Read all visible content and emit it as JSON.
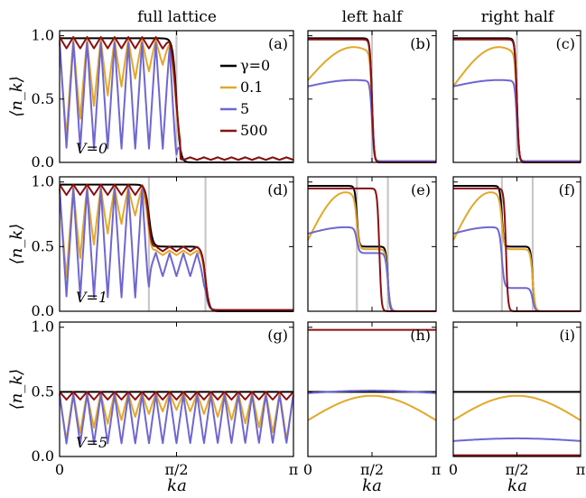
{
  "columns": [
    "full lattice",
    "left half",
    "right half"
  ],
  "y_axis_label": "⟨n_k⟩",
  "x_axis_label": "ka",
  "x_ticks": [
    "0",
    "π/2",
    "π"
  ],
  "y_ticks": [
    "0.0",
    "0.5",
    "1.0"
  ],
  "legend": {
    "prefix": "γ = ",
    "entries": [
      {
        "label": "γ=0",
        "color": "#000000"
      },
      {
        "label": "0.1",
        "color": "#e2a829"
      },
      {
        "label": "5",
        "color": "#6f67d1"
      },
      {
        "label": "500",
        "color": "#8b0f12"
      }
    ]
  },
  "rows": [
    {
      "v_label": "V=0",
      "panels": [
        "(a)",
        "(b)",
        "(c)"
      ]
    },
    {
      "v_label": "V=1",
      "panels": [
        "(d)",
        "(e)",
        "(f)"
      ]
    },
    {
      "v_label": "V=5",
      "panels": [
        "(g)",
        "(h)",
        "(i)"
      ]
    }
  ],
  "chart_data": {
    "type": "line",
    "x_range": [
      0,
      3.1416
    ],
    "ylim": [
      0,
      1
    ],
    "x_unit": "ka",
    "series_colors": {
      "0": "#000000",
      "0.1": "#e2a829",
      "5": "#6f67d1",
      "500": "#8b0f12"
    },
    "panels": [
      {
        "id": "(a)",
        "column": "full lattice",
        "v": 0,
        "vlines": [
          1.57
        ],
        "series": [
          {
            "name": "γ=0",
            "shape": "step",
            "params": {
              "hi": 0.98,
              "lo": 0.0,
              "edge": 1.57
            }
          },
          {
            "name": "0.1",
            "shape": "oscillating-step",
            "params": {
              "peak": 0.97,
              "trough_start": 0.0,
              "trough_mid": 0.82,
              "edge": 1.57,
              "tail": 0.02
            }
          },
          {
            "name": "5",
            "shape": "oscillating-step",
            "params": {
              "peak": 0.95,
              "trough_start": 0.12,
              "trough_mid": 0.1,
              "edge": 1.57,
              "tail": 0.02
            }
          },
          {
            "name": "500",
            "shape": "oscillating-step",
            "params": {
              "peak": 0.99,
              "trough_start": 0.9,
              "trough_mid": 0.9,
              "edge": 1.57,
              "tail": 0.02
            }
          }
        ]
      },
      {
        "id": "(b)",
        "column": "left half",
        "v": 0,
        "vlines": [
          1.57
        ],
        "series": [
          {
            "name": "γ=0",
            "shape": "step",
            "params": {
              "hi": 0.98,
              "lo": 0.0,
              "edge": 1.57
            }
          },
          {
            "name": "0.1",
            "shape": "dome-step",
            "params": {
              "start": 0.65,
              "top": 0.91,
              "edge": 1.57,
              "tail": 0.01
            }
          },
          {
            "name": "5",
            "shape": "dome-step",
            "params": {
              "start": 0.6,
              "top": 0.65,
              "edge": 1.57,
              "tail": 0.01
            }
          },
          {
            "name": "500",
            "shape": "step",
            "params": {
              "hi": 0.97,
              "lo": 0.0,
              "edge": 1.57
            }
          }
        ]
      },
      {
        "id": "(c)",
        "column": "right half",
        "v": 0,
        "vlines": [
          1.57
        ],
        "series": [
          {
            "name": "γ=0",
            "shape": "step",
            "params": {
              "hi": 0.98,
              "lo": 0.0,
              "edge": 1.57
            }
          },
          {
            "name": "0.1",
            "shape": "dome-step",
            "params": {
              "start": 0.6,
              "top": 0.91,
              "edge": 1.57,
              "tail": 0.01
            }
          },
          {
            "name": "5",
            "shape": "dome-step",
            "params": {
              "start": 0.6,
              "top": 0.65,
              "edge": 1.57,
              "tail": 0.01
            }
          },
          {
            "name": "500",
            "shape": "step",
            "params": {
              "hi": 0.97,
              "lo": 0.0,
              "edge": 1.57
            }
          }
        ]
      },
      {
        "id": "(d)",
        "column": "full lattice",
        "v": 1,
        "vlines": [
          1.2,
          1.96
        ],
        "series": [
          {
            "name": "γ=0",
            "shape": "two-step",
            "params": {
              "hi": 0.98,
              "mid": 0.5,
              "lo": 0.0,
              "e1": 1.2,
              "e2": 1.96
            }
          },
          {
            "name": "0.1",
            "shape": "oscillating-two-step",
            "params": {
              "peak": 0.96,
              "trough_start": 0.05,
              "trough_mid": 0.8,
              "mid": 0.47,
              "e1": 1.2,
              "e2": 1.96
            }
          },
          {
            "name": "5",
            "shape": "oscillating-two-step",
            "params": {
              "peak": 0.95,
              "trough_start": 0.12,
              "trough_mid": 0.1,
              "mid": 0.45,
              "e1": 1.2,
              "e2": 1.96
            }
          },
          {
            "name": "500",
            "shape": "oscillating-two-step",
            "params": {
              "peak": 0.98,
              "trough_start": 0.9,
              "trough_mid": 0.9,
              "mid": 0.5,
              "e1": 1.2,
              "e2": 1.96
            }
          }
        ]
      },
      {
        "id": "(e)",
        "column": "left half",
        "v": 1,
        "vlines": [
          1.2,
          1.96
        ],
        "series": [
          {
            "name": "γ=0",
            "shape": "two-step",
            "params": {
              "hi": 0.97,
              "mid": 0.5,
              "lo": 0.0,
              "e1": 1.2,
              "e2": 1.96
            }
          },
          {
            "name": "0.1",
            "shape": "dome-two-step",
            "params": {
              "start": 0.55,
              "top": 0.92,
              "mid": 0.48,
              "e1": 1.2,
              "e2": 1.96
            }
          },
          {
            "name": "5",
            "shape": "dome-two-step",
            "params": {
              "start": 0.6,
              "top": 0.65,
              "mid": 0.45,
              "e1": 1.2,
              "e2": 1.96
            }
          },
          {
            "name": "500",
            "shape": "step",
            "params": {
              "hi": 0.95,
              "lo": 0.0,
              "edge": 1.75
            }
          }
        ]
      },
      {
        "id": "(f)",
        "column": "right half",
        "v": 1,
        "vlines": [
          1.2,
          1.96
        ],
        "series": [
          {
            "name": "γ=0",
            "shape": "two-step",
            "params": {
              "hi": 0.97,
              "mid": 0.5,
              "lo": 0.0,
              "e1": 1.2,
              "e2": 1.96
            }
          },
          {
            "name": "0.1",
            "shape": "dome-two-step",
            "params": {
              "start": 0.55,
              "top": 0.92,
              "mid": 0.48,
              "e1": 1.2,
              "e2": 1.96
            }
          },
          {
            "name": "5",
            "shape": "dome-two-step",
            "params": {
              "start": 0.6,
              "top": 0.65,
              "mid": 0.18,
              "e1": 1.2,
              "e2": 1.96
            }
          },
          {
            "name": "500",
            "shape": "step",
            "params": {
              "hi": 0.95,
              "lo": 0.0,
              "edge": 1.3
            }
          }
        ]
      },
      {
        "id": "(g)",
        "column": "full lattice",
        "v": 5,
        "vlines": [],
        "series": [
          {
            "name": "γ=0",
            "shape": "flat",
            "params": {
              "value": 0.5
            }
          },
          {
            "name": "0.1",
            "shape": "oscillating-flat",
            "params": {
              "peak": 0.49,
              "trough_start": 0.05,
              "trough_mid": 0.36
            }
          },
          {
            "name": "5",
            "shape": "oscillating-flat",
            "params": {
              "peak": 0.48,
              "trough_start": 0.1,
              "trough_mid": 0.1
            }
          },
          {
            "name": "500",
            "shape": "oscillating-flat",
            "params": {
              "peak": 0.5,
              "trough_start": 0.44,
              "trough_mid": 0.44
            }
          }
        ]
      },
      {
        "id": "(h)",
        "column": "left half",
        "v": 5,
        "vlines": [],
        "series": [
          {
            "name": "γ=0",
            "shape": "flat",
            "params": {
              "value": 0.5
            }
          },
          {
            "name": "0.1",
            "shape": "dome",
            "params": {
              "start": 0.28,
              "top": 0.47
            }
          },
          {
            "name": "5",
            "shape": "dome",
            "params": {
              "start": 0.49,
              "top": 0.51
            }
          },
          {
            "name": "500",
            "shape": "flat",
            "params": {
              "value": 0.98
            }
          }
        ]
      },
      {
        "id": "(i)",
        "column": "right half",
        "v": 5,
        "vlines": [],
        "series": [
          {
            "name": "γ=0",
            "shape": "flat",
            "params": {
              "value": 0.5
            }
          },
          {
            "name": "0.1",
            "shape": "dome",
            "params": {
              "start": 0.28,
              "top": 0.47
            }
          },
          {
            "name": "5",
            "shape": "dome",
            "params": {
              "start": 0.12,
              "top": 0.14
            }
          },
          {
            "name": "500",
            "shape": "flat",
            "params": {
              "value": 0.01
            }
          }
        ]
      }
    ]
  }
}
